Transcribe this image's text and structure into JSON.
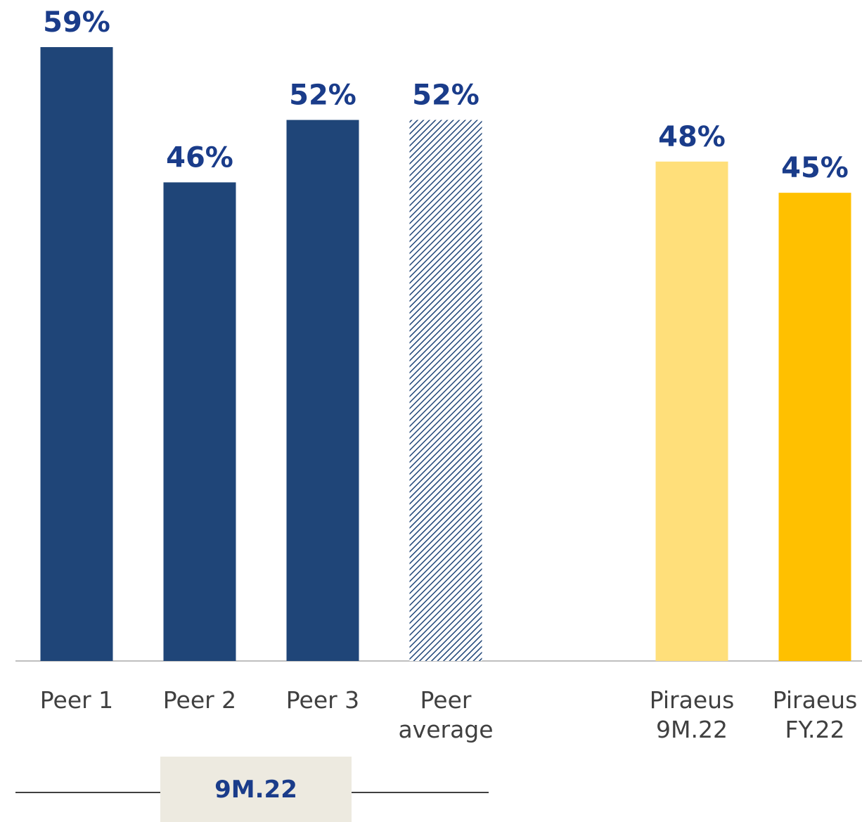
{
  "chart_data": {
    "type": "bar",
    "categories": [
      "Peer 1",
      "Peer 2",
      "Peer 3",
      "Peer\naverage",
      null,
      "Piraeus\n9M.22",
      "Piraeus\nFY.22"
    ],
    "values": [
      59,
      46,
      52,
      52,
      null,
      48,
      45
    ],
    "value_labels": [
      "59%",
      "46%",
      "52%",
      "52%",
      null,
      "48%",
      "45%"
    ],
    "colors": [
      "#1f4578",
      "#1f4578",
      "#1f4578",
      "#1f4578",
      null,
      "#ffdf7a",
      "#ffc000"
    ],
    "hatched": [
      false,
      false,
      false,
      true,
      false,
      false,
      false
    ],
    "group_label": "9M.22"
  }
}
